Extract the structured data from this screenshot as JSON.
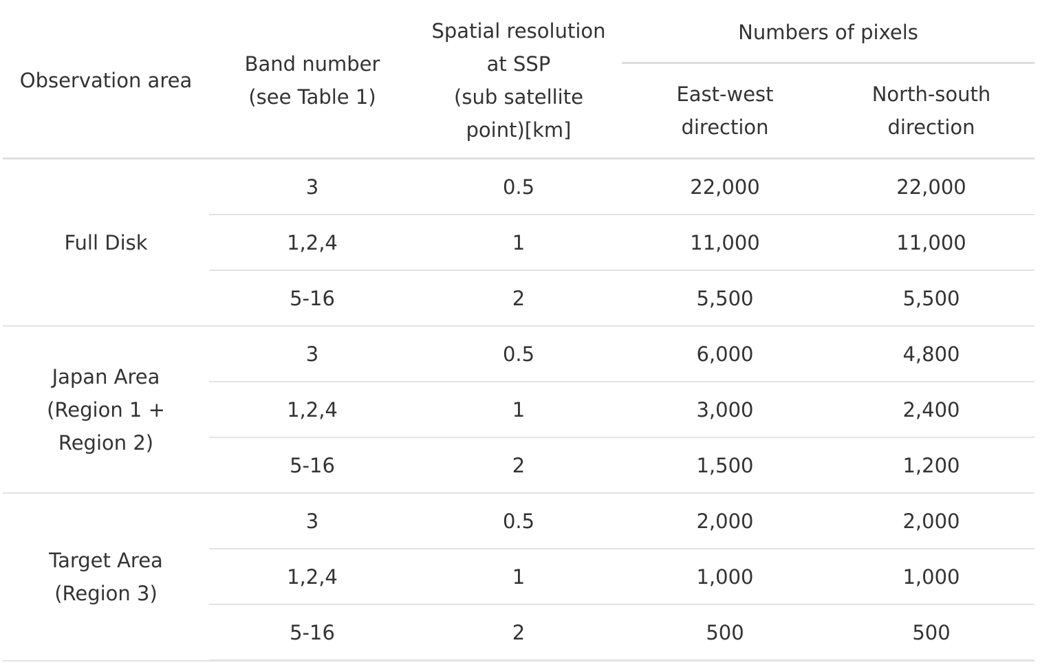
{
  "table": {
    "headers": {
      "observation_area": "Observation area",
      "band_number": [
        "Band number",
        "(see Table 1)"
      ],
      "spatial_resolution": [
        "Spatial resolution",
        "at SSP",
        "(sub satellite",
        "point)[km]"
      ],
      "numbers_of_pixels": "Numbers of pixels",
      "east_west": [
        "East-west",
        "direction"
      ],
      "north_south": [
        "North-south",
        "direction"
      ]
    },
    "groups": [
      {
        "area": [
          "Full Disk"
        ],
        "rows": [
          {
            "band": "3",
            "resolution": "0.5",
            "ew": "22,000",
            "ns": "22,000"
          },
          {
            "band": "1,2,4",
            "resolution": "1",
            "ew": "11,000",
            "ns": "11,000"
          },
          {
            "band": "5-16",
            "resolution": "2",
            "ew": "5,500",
            "ns": "5,500"
          }
        ]
      },
      {
        "area": [
          "Japan Area",
          "(Region 1 +",
          "Region 2)"
        ],
        "rows": [
          {
            "band": "3",
            "resolution": "0.5",
            "ew": "6,000",
            "ns": "4,800"
          },
          {
            "band": "1,2,4",
            "resolution": "1",
            "ew": "3,000",
            "ns": "2,400"
          },
          {
            "band": "5-16",
            "resolution": "2",
            "ew": "1,500",
            "ns": "1,200"
          }
        ]
      },
      {
        "area": [
          "Target Area",
          "(Region 3)"
        ],
        "rows": [
          {
            "band": "3",
            "resolution": "0.5",
            "ew": "2,000",
            "ns": "2,000"
          },
          {
            "band": "1,2,4",
            "resolution": "1",
            "ew": "1,000",
            "ns": "1,000"
          },
          {
            "band": "5-16",
            "resolution": "2",
            "ew": "500",
            "ns": "500"
          }
        ]
      }
    ]
  }
}
